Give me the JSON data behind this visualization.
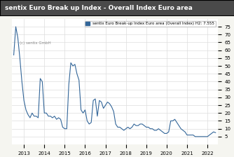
{
  "title": "sentix Euro Break up Index - Overall Index Euro area",
  "legend_label": "sentix Euro Break-up Index Euro area (Overall Index) H2: 7.555",
  "watermark": "(c) sentix GmbH",
  "line_color": "#336699",
  "background_color": "#f5f5f0",
  "plot_bg_color": "#ffffff",
  "title_bg_color": "#4a4a4a",
  "title_text_color": "#ffffff",
  "ylim": [
    0,
    80
  ],
  "yticks": [
    5,
    10,
    15,
    20,
    25,
    30,
    35,
    40,
    45,
    50,
    55,
    60,
    65,
    70,
    75
  ],
  "x_start_year": 2013,
  "x_end_year": 2022,
  "grid_color": "#dddddd",
  "data_x": [
    2012.5,
    2012.6,
    2012.7,
    2012.8,
    2012.9,
    2013.0,
    2013.1,
    2013.2,
    2013.3,
    2013.4,
    2013.5,
    2013.6,
    2013.7,
    2013.8,
    2013.9,
    2014.0,
    2014.1,
    2014.2,
    2014.3,
    2014.4,
    2014.5,
    2014.6,
    2014.7,
    2014.8,
    2014.9,
    2015.0,
    2015.1,
    2015.2,
    2015.3,
    2015.4,
    2015.5,
    2015.6,
    2015.7,
    2015.8,
    2015.9,
    2016.0,
    2016.1,
    2016.2,
    2016.3,
    2016.4,
    2016.5,
    2016.6,
    2016.7,
    2016.8,
    2016.9,
    2017.0,
    2017.1,
    2017.2,
    2017.3,
    2017.4,
    2017.5,
    2017.6,
    2017.7,
    2017.8,
    2017.9,
    2018.0,
    2018.1,
    2018.2,
    2018.3,
    2018.4,
    2018.5,
    2018.6,
    2018.7,
    2018.8,
    2018.9,
    2019.0,
    2019.1,
    2019.2,
    2019.3,
    2019.4,
    2019.5,
    2019.6,
    2019.7,
    2019.8,
    2019.9,
    2020.0,
    2020.1,
    2020.2,
    2020.3,
    2020.4,
    2020.5,
    2020.6,
    2020.7,
    2020.8,
    2020.9,
    2021.0,
    2021.1,
    2021.2,
    2021.3,
    2021.4,
    2021.5,
    2021.6,
    2021.7,
    2021.8,
    2021.9,
    2022.0,
    2022.1,
    2022.2,
    2022.3,
    2022.4
  ],
  "data_y": [
    57,
    75,
    68,
    55,
    40,
    28,
    22,
    19,
    17,
    20,
    18,
    18,
    17,
    42,
    40,
    20,
    20,
    18,
    18,
    17,
    18,
    16,
    17,
    16,
    11,
    10,
    10,
    38,
    52,
    50,
    51,
    45,
    41,
    22,
    20,
    22,
    15,
    13,
    14,
    28,
    29,
    18,
    28,
    27,
    23,
    25,
    27,
    26,
    24,
    21,
    13,
    11,
    11,
    10,
    9,
    10,
    11,
    10,
    11,
    13,
    12,
    12,
    13,
    13,
    12,
    11,
    11,
    10,
    10,
    9,
    9,
    10,
    9,
    8,
    7,
    7,
    8,
    15,
    15,
    16,
    14,
    12,
    10,
    9,
    8,
    6,
    6,
    6,
    6,
    5,
    5,
    5,
    5,
    5,
    5,
    5,
    6,
    7,
    8,
    7.5
  ]
}
